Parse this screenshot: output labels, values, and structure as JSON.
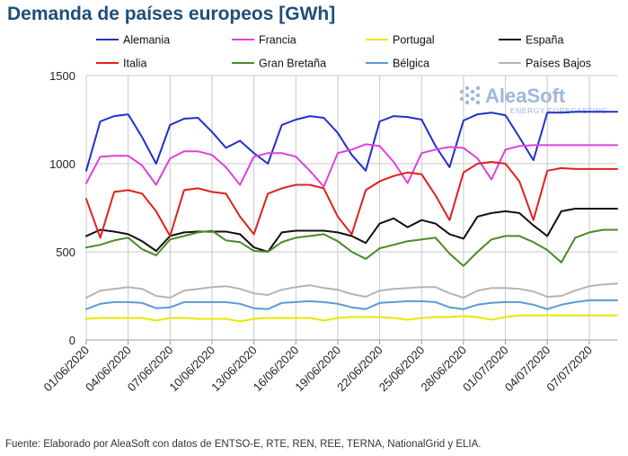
{
  "title": "Demanda de países europeos [GWh]",
  "source": "Fuente: Elaborado por AleaSoft con datos de ENTSO-E, RTE, REN, REE, TERNA, NationalGrid y ELIA.",
  "logo": {
    "name": "AleaSoft",
    "tagline": "ENERGY FORECASTING",
    "color": "#9fb7d9"
  },
  "chart_data": {
    "type": "line",
    "title": "Demanda de países europeos [GWh]",
    "xlabel": "",
    "ylabel": "",
    "ylim": [
      0,
      1500
    ],
    "yticks": [
      0,
      500,
      1000,
      1500
    ],
    "grid": true,
    "legend_position": "top",
    "start_date": "2020-06-01",
    "xticks": [
      "01/06/2020",
      "04/06/2020",
      "07/06/2020",
      "10/06/2020",
      "13/06/2020",
      "16/06/2020",
      "19/06/2020",
      "22/06/2020",
      "25/06/2020",
      "28/06/2020",
      "01/07/2020",
      "04/07/2020",
      "07/07/2020"
    ],
    "x": [
      "01/06/2020",
      "02/06/2020",
      "03/06/2020",
      "04/06/2020",
      "05/06/2020",
      "06/06/2020",
      "07/06/2020",
      "08/06/2020",
      "09/06/2020",
      "10/06/2020",
      "11/06/2020",
      "12/06/2020",
      "13/06/2020",
      "14/06/2020",
      "15/06/2020",
      "16/06/2020",
      "17/06/2020",
      "18/06/2020",
      "19/06/2020",
      "20/06/2020",
      "21/06/2020",
      "22/06/2020",
      "23/06/2020",
      "24/06/2020",
      "25/06/2020",
      "26/06/2020",
      "27/06/2020",
      "28/06/2020",
      "29/06/2020",
      "30/06/2020",
      "01/07/2020",
      "02/07/2020",
      "03/07/2020",
      "04/07/2020",
      "05/07/2020",
      "06/07/2020",
      "07/07/2020",
      "08/07/2020",
      "09/07/2020"
    ],
    "series": [
      {
        "name": "Alemania",
        "color": "#1f32c8",
        "values": [
          960,
          1240,
          1270,
          1280,
          1150,
          1000,
          1220,
          1255,
          1260,
          1180,
          1090,
          1130,
          1060,
          1000,
          1220,
          1250,
          1270,
          1260,
          1175,
          1050,
          960,
          1240,
          1270,
          1265,
          1250,
          1100,
          980,
          1245,
          1280,
          1290,
          1275,
          1150,
          1020,
          1290,
          1290,
          1295,
          1295,
          1295,
          1295
        ]
      },
      {
        "name": "Francia",
        "color": "#e040e0",
        "values": [
          890,
          1040,
          1045,
          1045,
          990,
          880,
          1030,
          1070,
          1070,
          1050,
          980,
          880,
          1040,
          1060,
          1060,
          1040,
          960,
          870,
          1060,
          1080,
          1110,
          1100,
          1010,
          890,
          1060,
          1080,
          1095,
          1090,
          1030,
          910,
          1080,
          1100,
          1105,
          1105,
          1105,
          1105,
          1105,
          1105,
          1105
        ]
      },
      {
        "name": "Portugal",
        "color": "#e8e800",
        "values": [
          120,
          125,
          125,
          125,
          125,
          110,
          125,
          125,
          120,
          120,
          120,
          105,
          120,
          125,
          125,
          125,
          125,
          110,
          125,
          130,
          130,
          130,
          125,
          115,
          125,
          130,
          130,
          135,
          130,
          115,
          130,
          140,
          140,
          140,
          140,
          140,
          140,
          140,
          140
        ]
      },
      {
        "name": "España",
        "color": "#111111",
        "values": [
          590,
          625,
          615,
          600,
          560,
          505,
          590,
          610,
          615,
          615,
          615,
          600,
          525,
          500,
          610,
          620,
          620,
          620,
          610,
          590,
          550,
          660,
          690,
          640,
          680,
          660,
          600,
          575,
          700,
          720,
          730,
          720,
          650,
          590,
          730,
          745,
          745,
          745,
          745
        ]
      },
      {
        "name": "Italia",
        "color": "#e02020",
        "values": [
          800,
          580,
          840,
          850,
          830,
          730,
          590,
          850,
          860,
          840,
          830,
          700,
          600,
          830,
          860,
          880,
          880,
          860,
          700,
          600,
          850,
          900,
          930,
          950,
          940,
          820,
          680,
          950,
          1000,
          1010,
          1000,
          900,
          680,
          960,
          975,
          970,
          970,
          970,
          970
        ]
      },
      {
        "name": "Gran Bretaña",
        "color": "#4a8a2a",
        "values": [
          525,
          540,
          565,
          580,
          515,
          480,
          570,
          590,
          610,
          620,
          565,
          555,
          505,
          500,
          555,
          580,
          590,
          600,
          560,
          500,
          460,
          520,
          540,
          560,
          570,
          580,
          490,
          420,
          500,
          570,
          590,
          590,
          555,
          510,
          440,
          580,
          610,
          625,
          625
        ]
      },
      {
        "name": "Bélgica",
        "color": "#5b9bd5",
        "values": [
          175,
          205,
          215,
          215,
          210,
          180,
          185,
          215,
          215,
          215,
          215,
          205,
          180,
          175,
          210,
          215,
          220,
          215,
          205,
          185,
          175,
          210,
          215,
          220,
          220,
          215,
          185,
          175,
          200,
          210,
          215,
          215,
          200,
          175,
          200,
          215,
          225,
          225,
          225
        ]
      },
      {
        "name": "Países Bajos",
        "color": "#b4b4b4",
        "values": [
          240,
          280,
          290,
          300,
          290,
          250,
          240,
          280,
          290,
          300,
          305,
          290,
          265,
          255,
          285,
          300,
          310,
          295,
          285,
          260,
          245,
          280,
          290,
          295,
          300,
          300,
          265,
          240,
          280,
          295,
          295,
          290,
          275,
          245,
          250,
          280,
          305,
          315,
          320
        ]
      }
    ]
  }
}
